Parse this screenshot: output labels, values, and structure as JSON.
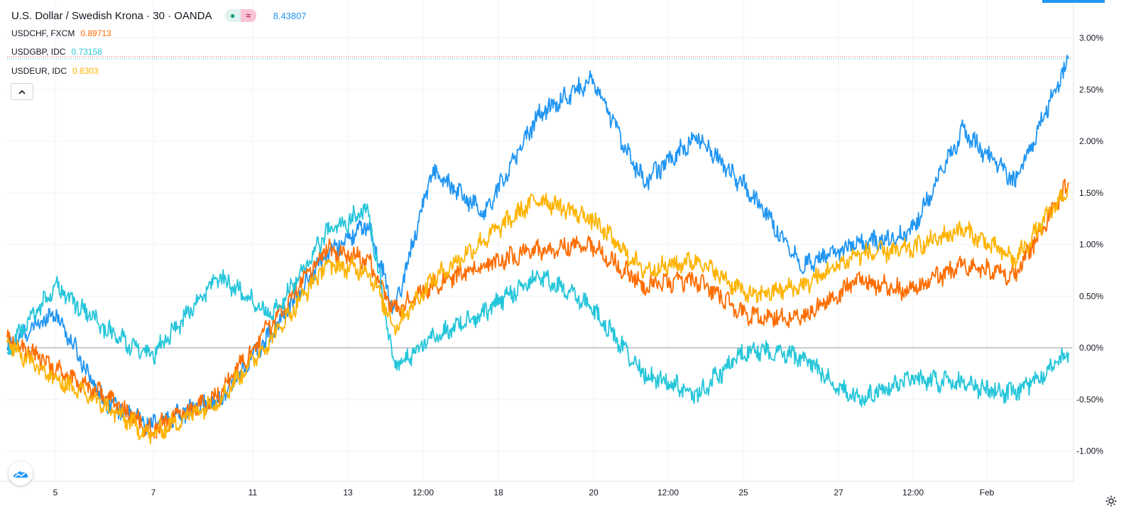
{
  "header": {
    "title": "U.S. Dollar / Swedish Krona · 30 · OANDA",
    "last_value": "8.43807",
    "last_value_color": "#2196f3"
  },
  "legend": [
    {
      "symbol": "USDCHF, FXCM",
      "value": "0.89713",
      "color": "#ff6d00"
    },
    {
      "symbol": "USDGBP, IDC",
      "value": "0.73158",
      "color": "#26c6da"
    },
    {
      "symbol": "USDEUR, IDC",
      "value": "0.8303",
      "color": "#ffb300"
    }
  ],
  "icons": {
    "status_live": "●",
    "status_delay": "≈",
    "collapse": "chevron-up-icon",
    "logo": "tradingview-cloud-icon",
    "settings": "gear-icon"
  },
  "chart_data": {
    "type": "line",
    "x_ticks": [
      "5",
      "7",
      "11",
      "13",
      "12:00",
      "18",
      "20",
      "12:00",
      "25",
      "27",
      "12:00",
      "Feb"
    ],
    "y_ticks": [
      "3.00%",
      "2.50%",
      "2.00%",
      "1.50%",
      "1.00%",
      "0.50%",
      "0.00%",
      "-0.50%",
      "-1.00%"
    ],
    "ylim": [
      -1.2,
      3.3
    ],
    "grid": true,
    "x_positions": [
      0,
      0.045,
      0.09,
      0.135,
      0.2,
      0.25,
      0.3,
      0.34,
      0.365,
      0.4,
      0.45,
      0.5,
      0.55,
      0.6,
      0.65,
      0.7,
      0.75,
      0.8,
      0.85,
      0.9,
      0.95,
      1.0
    ],
    "series": [
      {
        "name": "U.S. Dollar / Swedish Krona",
        "color": "#2196f3",
        "values": [
          0.0,
          0.35,
          -0.5,
          -0.75,
          -0.5,
          0.15,
          0.9,
          1.2,
          0.35,
          1.7,
          1.3,
          2.25,
          2.6,
          1.6,
          2.05,
          1.5,
          0.8,
          1.0,
          1.1,
          2.1,
          1.6,
          2.8
        ]
      },
      {
        "name": "USDCHF, FXCM",
        "color": "#ff6d00",
        "values": [
          0.1,
          -0.2,
          -0.45,
          -0.8,
          -0.45,
          0.25,
          0.95,
          0.85,
          0.35,
          0.6,
          0.8,
          0.95,
          1.0,
          0.6,
          0.65,
          0.3,
          0.3,
          0.65,
          0.55,
          0.8,
          0.7,
          1.6
        ]
      },
      {
        "name": "USDGBP, IDC",
        "color": "#26c6da",
        "values": [
          -0.05,
          0.6,
          0.2,
          -0.1,
          0.7,
          0.3,
          1.1,
          1.35,
          -0.2,
          0.1,
          0.35,
          0.7,
          0.4,
          -0.25,
          -0.45,
          0.0,
          -0.1,
          -0.5,
          -0.3,
          -0.35,
          -0.45,
          -0.05
        ]
      },
      {
        "name": "USDEUR, IDC",
        "color": "#ffb300",
        "values": [
          0.05,
          -0.3,
          -0.55,
          -0.85,
          -0.5,
          0.1,
          0.8,
          0.75,
          0.2,
          0.65,
          1.05,
          1.45,
          1.25,
          0.75,
          0.85,
          0.5,
          0.6,
          0.9,
          0.95,
          1.15,
          0.85,
          1.55
        ]
      }
    ]
  }
}
